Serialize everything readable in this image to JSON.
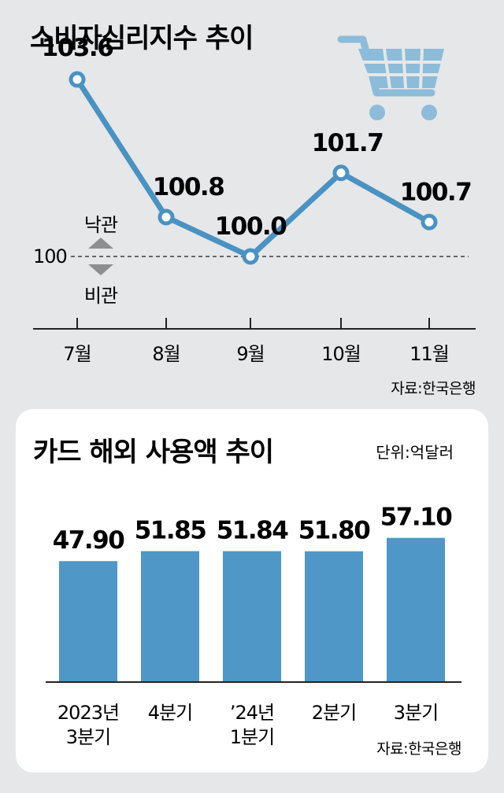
{
  "colors": {
    "line": "#4a92c2",
    "bar": "#4e97c6",
    "cart": "#8cbcd9",
    "grid": "#666666",
    "panel": "#ffffff",
    "background": "#e6e7e8"
  },
  "top": {
    "title": "소비자심리지수 추이",
    "source": "자료:한국은행",
    "baseline_label": "100",
    "optimism_label": "낙관",
    "pessimism_label": "비관",
    "cart_icon": "shopping-cart-icon"
  },
  "bottom": {
    "title": "카드 해외 사용액 추이",
    "unit": "단위:억달러",
    "source": "자료:한국은행"
  },
  "chart_data": [
    {
      "type": "line",
      "title": "소비자심리지수 추이",
      "x": [
        "7월",
        "8월",
        "9월",
        "10월",
        "11월"
      ],
      "series": [
        {
          "values": [
            103.6,
            100.8,
            100.0,
            101.7,
            100.7
          ]
        }
      ],
      "value_labels": [
        "103.6",
        "100.8",
        "100.0",
        "101.7",
        "100.7"
      ],
      "reference_line": 100,
      "ylim": [
        99.0,
        104.5
      ]
    },
    {
      "type": "bar",
      "title": "카드 해외 사용액 추이",
      "unit": "단위:억달러",
      "categories": [
        [
          "2023년",
          "3분기"
        ],
        [
          "4분기"
        ],
        [
          "’24년",
          "1분기"
        ],
        [
          "2분기"
        ],
        [
          "3분기"
        ]
      ],
      "values": [
        47.9,
        51.85,
        51.84,
        51.8,
        57.1
      ],
      "value_labels": [
        "47.90",
        "51.85",
        "51.84",
        "51.80",
        "57.10"
      ],
      "ylim": [
        0,
        60
      ]
    }
  ]
}
